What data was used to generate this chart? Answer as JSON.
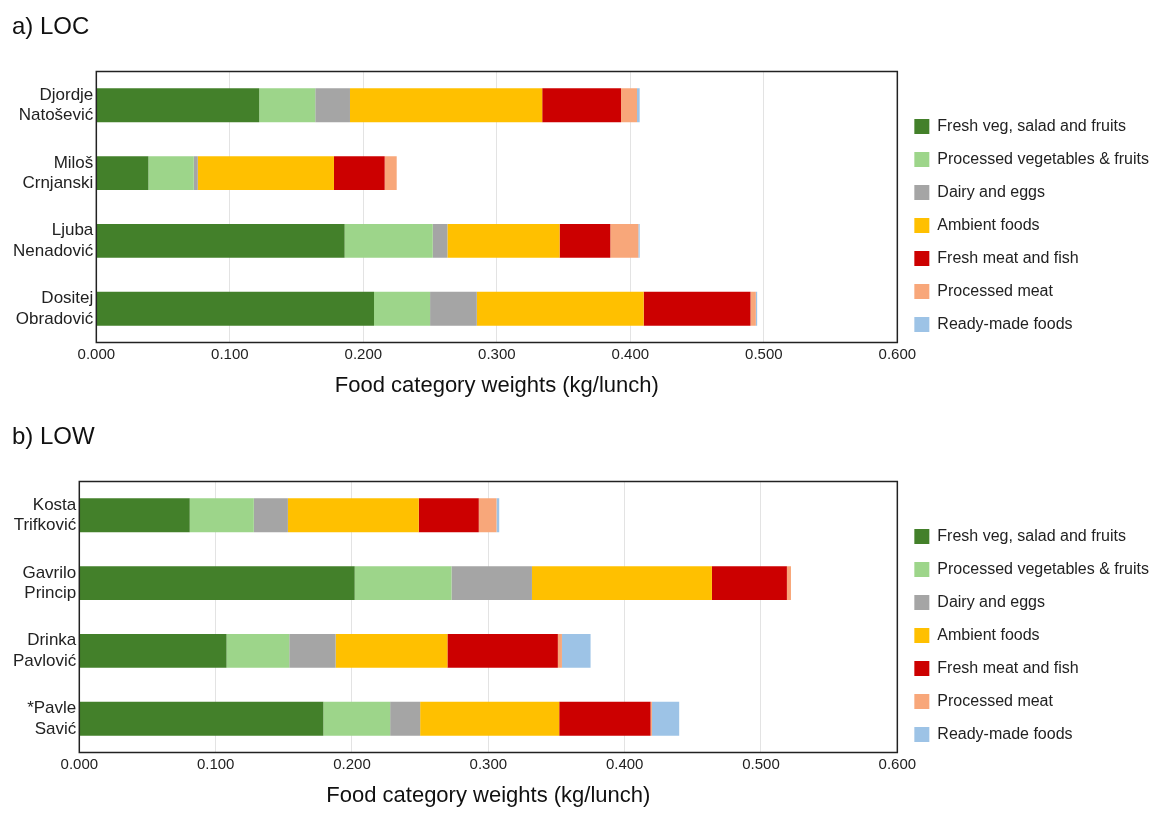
{
  "chart_data": [
    {
      "type": "bar",
      "title": "a)  LOC",
      "orientation": "horizontal",
      "stacked": true,
      "xlabel": "Food category weights (kg/lunch)",
      "categories": [
        "Djordje Natošević",
        "Miloš Crnjanski",
        "Ljuba Nenadović",
        "Dositej Obradović"
      ],
      "series": [
        {
          "name": "Fresh veg, salad and fruits",
          "color": "#43802a",
          "values": [
            0.122,
            0.039,
            0.186,
            0.208
          ]
        },
        {
          "name": "Processed vegetables & fruits",
          "color": "#9dd58a",
          "values": [
            0.042,
            0.034,
            0.066,
            0.042
          ]
        },
        {
          "name": "Dairy and eggs",
          "color": "#a5a5a5",
          "values": [
            0.026,
            0.003,
            0.011,
            0.035
          ]
        },
        {
          "name": "Ambient foods",
          "color": "#ffc000",
          "values": [
            0.144,
            0.102,
            0.084,
            0.125
          ]
        },
        {
          "name": "Fresh meat and fish",
          "color": "#cc0000",
          "values": [
            0.059,
            0.038,
            0.038,
            0.08
          ]
        },
        {
          "name": "Processed meat",
          "color": "#f8a77a",
          "values": [
            0.012,
            0.009,
            0.021,
            0.004
          ]
        },
        {
          "name": "Ready-made foods",
          "color": "#9dc3e6",
          "values": [
            0.002,
            0,
            0.001,
            0.001
          ]
        }
      ],
      "xlim": [
        0,
        0.6
      ],
      "xticks": [
        {
          "value": 0,
          "label": "0.000"
        },
        {
          "value": 0.1,
          "label": "0.100"
        },
        {
          "value": 0.2,
          "label": "0.200"
        },
        {
          "value": 0.3,
          "label": "0.300"
        },
        {
          "value": 0.4,
          "label": "0.400"
        },
        {
          "value": 0.5,
          "label": "0.500"
        },
        {
          "value": 0.6,
          "label": "0.600"
        }
      ],
      "grid": "x",
      "legend": "right"
    },
    {
      "type": "bar",
      "title": "b)  LOW",
      "orientation": "horizontal",
      "stacked": true,
      "xlabel": "Food category weights (kg/lunch)",
      "categories": [
        "Kosta Trifković",
        "Gavrilo Princip",
        "Drinka Pavlović",
        "*Pavle Savić"
      ],
      "series": [
        {
          "name": "Fresh veg, salad and fruits",
          "color": "#43802a",
          "values": [
            0.081,
            0.202,
            0.108,
            0.179
          ]
        },
        {
          "name": "Processed vegetables & fruits",
          "color": "#9dd58a",
          "values": [
            0.047,
            0.071,
            0.046,
            0.049
          ]
        },
        {
          "name": "Dairy and eggs",
          "color": "#a5a5a5",
          "values": [
            0.025,
            0.059,
            0.034,
            0.022
          ]
        },
        {
          "name": "Ambient foods",
          "color": "#ffc000",
          "values": [
            0.096,
            0.132,
            0.082,
            0.102
          ]
        },
        {
          "name": "Fresh meat and fish",
          "color": "#cc0000",
          "values": [
            0.044,
            0.055,
            0.081,
            0.067
          ]
        },
        {
          "name": "Processed meat",
          "color": "#f8a77a",
          "values": [
            0.013,
            0.003,
            0.003,
            0.001
          ]
        },
        {
          "name": "Ready-made foods",
          "color": "#9dc3e6",
          "values": [
            0.002,
            0,
            0.021,
            0.02
          ]
        }
      ],
      "xlim": [
        0,
        0.6
      ],
      "xticks": [
        {
          "value": 0,
          "label": "0.000"
        },
        {
          "value": 0.1,
          "label": "0.100"
        },
        {
          "value": 0.2,
          "label": "0.200"
        },
        {
          "value": 0.3,
          "label": "0.300"
        },
        {
          "value": 0.4,
          "label": "0.400"
        },
        {
          "value": 0.5,
          "label": "0.500"
        },
        {
          "value": 0.6,
          "label": "0.600"
        }
      ],
      "grid": "x",
      "legend": "right"
    }
  ]
}
